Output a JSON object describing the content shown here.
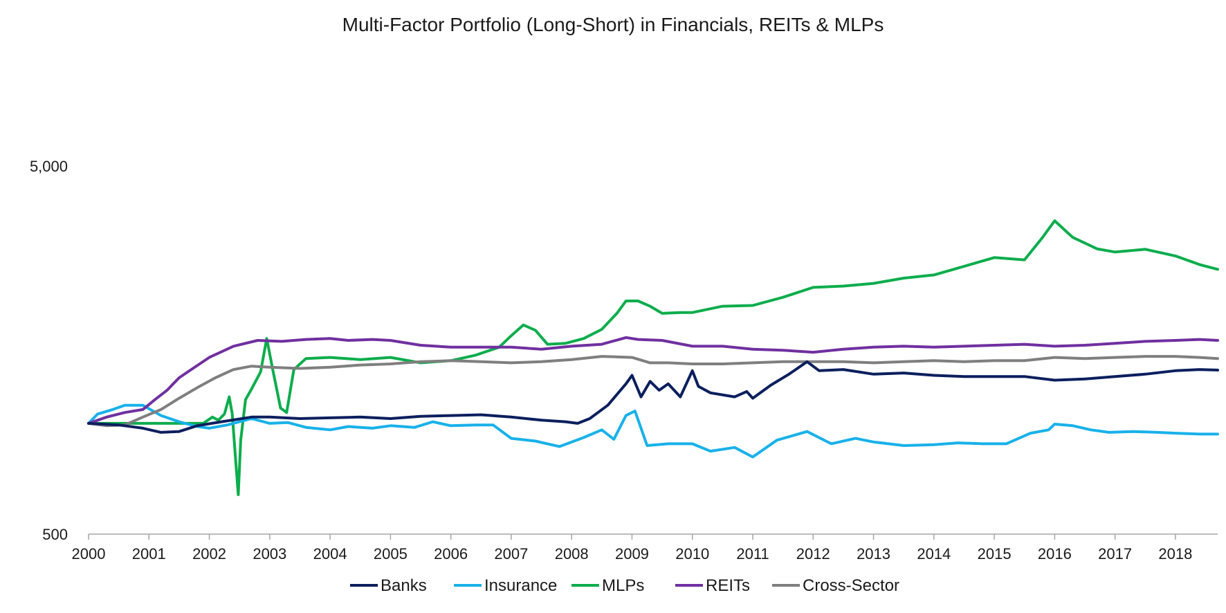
{
  "chart_data": {
    "type": "line",
    "title": "Multi-Factor Portfolio (Long-Short) in Financials, REITs & MLPs",
    "xlabel": "",
    "ylabel": "",
    "y_scale": "log",
    "ylim": [
      500,
      5000
    ],
    "y_ticks": [
      500,
      5000
    ],
    "y_tick_labels": [
      "500",
      "5,000"
    ],
    "xlim": [
      2000,
      2018.7
    ],
    "x_ticks": [
      2000,
      2001,
      2002,
      2003,
      2004,
      2005,
      2006,
      2007,
      2008,
      2009,
      2010,
      2011,
      2012,
      2013,
      2014,
      2015,
      2016,
      2017,
      2018
    ],
    "x_tick_labels": [
      "2000",
      "2001",
      "2002",
      "2003",
      "2004",
      "2005",
      "2006",
      "2007",
      "2008",
      "2009",
      "2010",
      "2011",
      "2012",
      "2013",
      "2014",
      "2015",
      "2016",
      "2017",
      "2018"
    ],
    "grid": false,
    "legend_position": "bottom",
    "series": [
      {
        "name": "Banks",
        "color": "#0b1f5e",
        "points": [
          [
            2000.0,
            1000
          ],
          [
            2000.5,
            990
          ],
          [
            2000.9,
            970
          ],
          [
            2001.2,
            945
          ],
          [
            2001.5,
            950
          ],
          [
            2001.8,
            985
          ],
          [
            2002.2,
            1010
          ],
          [
            2002.7,
            1040
          ],
          [
            2003.0,
            1040
          ],
          [
            2003.5,
            1030
          ],
          [
            2004.0,
            1035
          ],
          [
            2004.5,
            1040
          ],
          [
            2005.0,
            1030
          ],
          [
            2005.5,
            1045
          ],
          [
            2006.0,
            1050
          ],
          [
            2006.5,
            1055
          ],
          [
            2007.0,
            1040
          ],
          [
            2007.5,
            1020
          ],
          [
            2007.9,
            1010
          ],
          [
            2008.1,
            1000
          ],
          [
            2008.3,
            1030
          ],
          [
            2008.6,
            1120
          ],
          [
            2008.9,
            1280
          ],
          [
            2009.0,
            1350
          ],
          [
            2009.15,
            1180
          ],
          [
            2009.3,
            1300
          ],
          [
            2009.45,
            1230
          ],
          [
            2009.6,
            1280
          ],
          [
            2009.8,
            1180
          ],
          [
            2010.0,
            1390
          ],
          [
            2010.1,
            1260
          ],
          [
            2010.3,
            1210
          ],
          [
            2010.7,
            1180
          ],
          [
            2010.9,
            1220
          ],
          [
            2011.0,
            1170
          ],
          [
            2011.3,
            1270
          ],
          [
            2011.6,
            1360
          ],
          [
            2011.9,
            1470
          ],
          [
            2012.1,
            1390
          ],
          [
            2012.5,
            1400
          ],
          [
            2013.0,
            1360
          ],
          [
            2013.5,
            1370
          ],
          [
            2014.0,
            1350
          ],
          [
            2014.5,
            1340
          ],
          [
            2015.0,
            1340
          ],
          [
            2015.5,
            1340
          ],
          [
            2016.0,
            1310
          ],
          [
            2016.5,
            1320
          ],
          [
            2017.0,
            1340
          ],
          [
            2017.5,
            1360
          ],
          [
            2018.0,
            1390
          ],
          [
            2018.4,
            1400
          ],
          [
            2018.7,
            1395
          ]
        ]
      },
      {
        "name": "Insurance",
        "color": "#18b1ea",
        "points": [
          [
            2000.0,
            1000
          ],
          [
            2000.15,
            1060
          ],
          [
            2000.4,
            1090
          ],
          [
            2000.6,
            1120
          ],
          [
            2000.9,
            1120
          ],
          [
            2001.2,
            1050
          ],
          [
            2001.5,
            1010
          ],
          [
            2001.8,
            980
          ],
          [
            2002.0,
            970
          ],
          [
            2002.3,
            990
          ],
          [
            2002.7,
            1030
          ],
          [
            2003.0,
            1000
          ],
          [
            2003.3,
            1005
          ],
          [
            2003.6,
            975
          ],
          [
            2004.0,
            960
          ],
          [
            2004.3,
            980
          ],
          [
            2004.7,
            970
          ],
          [
            2005.0,
            985
          ],
          [
            2005.4,
            975
          ],
          [
            2005.7,
            1010
          ],
          [
            2006.0,
            985
          ],
          [
            2006.4,
            990
          ],
          [
            2006.7,
            990
          ],
          [
            2007.0,
            910
          ],
          [
            2007.4,
            895
          ],
          [
            2007.8,
            865
          ],
          [
            2008.2,
            915
          ],
          [
            2008.5,
            960
          ],
          [
            2008.7,
            905
          ],
          [
            2008.9,
            1050
          ],
          [
            2009.05,
            1080
          ],
          [
            2009.25,
            870
          ],
          [
            2009.6,
            880
          ],
          [
            2010.0,
            880
          ],
          [
            2010.3,
            840
          ],
          [
            2010.7,
            860
          ],
          [
            2011.0,
            810
          ],
          [
            2011.4,
            900
          ],
          [
            2011.9,
            950
          ],
          [
            2012.3,
            880
          ],
          [
            2012.7,
            910
          ],
          [
            2013.0,
            890
          ],
          [
            2013.5,
            870
          ],
          [
            2014.0,
            875
          ],
          [
            2014.4,
            885
          ],
          [
            2014.8,
            880
          ],
          [
            2015.2,
            880
          ],
          [
            2015.6,
            940
          ],
          [
            2015.9,
            960
          ],
          [
            2016.0,
            995
          ],
          [
            2016.3,
            985
          ],
          [
            2016.6,
            960
          ],
          [
            2016.9,
            945
          ],
          [
            2017.3,
            950
          ],
          [
            2017.7,
            945
          ],
          [
            2018.0,
            940
          ],
          [
            2018.4,
            935
          ],
          [
            2018.7,
            935
          ]
        ]
      },
      {
        "name": "MLPs",
        "color": "#0cad4c",
        "points": [
          [
            2000.0,
            1000
          ],
          [
            2001.0,
            1000
          ],
          [
            2001.9,
            1000
          ],
          [
            2002.05,
            1040
          ],
          [
            2002.15,
            1020
          ],
          [
            2002.25,
            1060
          ],
          [
            2002.33,
            1180
          ],
          [
            2002.38,
            1060
          ],
          [
            2002.44,
            780
          ],
          [
            2002.48,
            640
          ],
          [
            2002.52,
            900
          ],
          [
            2002.6,
            1160
          ],
          [
            2002.7,
            1240
          ],
          [
            2002.85,
            1380
          ],
          [
            2002.95,
            1700
          ],
          [
            2003.05,
            1400
          ],
          [
            2003.18,
            1100
          ],
          [
            2003.28,
            1070
          ],
          [
            2003.4,
            1400
          ],
          [
            2003.6,
            1500
          ],
          [
            2004.0,
            1510
          ],
          [
            2004.5,
            1490
          ],
          [
            2005.0,
            1510
          ],
          [
            2005.5,
            1460
          ],
          [
            2006.0,
            1480
          ],
          [
            2006.4,
            1530
          ],
          [
            2006.8,
            1610
          ],
          [
            2007.0,
            1730
          ],
          [
            2007.2,
            1850
          ],
          [
            2007.4,
            1790
          ],
          [
            2007.6,
            1640
          ],
          [
            2007.9,
            1650
          ],
          [
            2008.2,
            1700
          ],
          [
            2008.5,
            1800
          ],
          [
            2008.75,
            1990
          ],
          [
            2008.9,
            2150
          ],
          [
            2009.1,
            2150
          ],
          [
            2009.3,
            2080
          ],
          [
            2009.5,
            1990
          ],
          [
            2009.8,
            2000
          ],
          [
            2010.0,
            2000
          ],
          [
            2010.5,
            2080
          ],
          [
            2011.0,
            2090
          ],
          [
            2011.5,
            2200
          ],
          [
            2012.0,
            2340
          ],
          [
            2012.5,
            2360
          ],
          [
            2013.0,
            2400
          ],
          [
            2013.5,
            2480
          ],
          [
            2014.0,
            2530
          ],
          [
            2014.5,
            2670
          ],
          [
            2015.0,
            2820
          ],
          [
            2015.5,
            2780
          ],
          [
            2015.8,
            3200
          ],
          [
            2016.0,
            3550
          ],
          [
            2016.3,
            3200
          ],
          [
            2016.7,
            2980
          ],
          [
            2017.0,
            2920
          ],
          [
            2017.5,
            2970
          ],
          [
            2018.0,
            2850
          ],
          [
            2018.4,
            2700
          ],
          [
            2018.7,
            2620
          ]
        ]
      },
      {
        "name": "REITs",
        "color": "#7030a0",
        "points": [
          [
            2000.0,
            1000
          ],
          [
            2000.3,
            1040
          ],
          [
            2000.6,
            1070
          ],
          [
            2000.9,
            1090
          ],
          [
            2001.1,
            1160
          ],
          [
            2001.3,
            1230
          ],
          [
            2001.5,
            1330
          ],
          [
            2001.7,
            1400
          ],
          [
            2002.0,
            1510
          ],
          [
            2002.4,
            1620
          ],
          [
            2002.8,
            1680
          ],
          [
            2003.2,
            1670
          ],
          [
            2003.6,
            1690
          ],
          [
            2004.0,
            1700
          ],
          [
            2004.3,
            1680
          ],
          [
            2004.7,
            1690
          ],
          [
            2005.0,
            1680
          ],
          [
            2005.5,
            1630
          ],
          [
            2006.0,
            1610
          ],
          [
            2006.5,
            1610
          ],
          [
            2007.0,
            1610
          ],
          [
            2007.5,
            1590
          ],
          [
            2008.0,
            1620
          ],
          [
            2008.5,
            1640
          ],
          [
            2008.9,
            1710
          ],
          [
            2009.1,
            1690
          ],
          [
            2009.5,
            1680
          ],
          [
            2010.0,
            1620
          ],
          [
            2010.5,
            1620
          ],
          [
            2011.0,
            1590
          ],
          [
            2011.5,
            1580
          ],
          [
            2012.0,
            1560
          ],
          [
            2012.5,
            1590
          ],
          [
            2013.0,
            1610
          ],
          [
            2013.5,
            1620
          ],
          [
            2014.0,
            1610
          ],
          [
            2014.5,
            1620
          ],
          [
            2015.0,
            1630
          ],
          [
            2015.5,
            1640
          ],
          [
            2016.0,
            1620
          ],
          [
            2016.5,
            1630
          ],
          [
            2017.0,
            1650
          ],
          [
            2017.5,
            1670
          ],
          [
            2018.0,
            1680
          ],
          [
            2018.4,
            1690
          ],
          [
            2018.7,
            1680
          ]
        ]
      },
      {
        "name": "Cross-Sector",
        "color": "#7f7f7f",
        "points": [
          [
            2000.0,
            1000
          ],
          [
            2000.3,
            985
          ],
          [
            2000.6,
            990
          ],
          [
            2000.9,
            1040
          ],
          [
            2001.2,
            1090
          ],
          [
            2001.5,
            1170
          ],
          [
            2001.8,
            1250
          ],
          [
            2002.1,
            1330
          ],
          [
            2002.4,
            1400
          ],
          [
            2002.7,
            1430
          ],
          [
            2003.0,
            1420
          ],
          [
            2003.5,
            1410
          ],
          [
            2004.0,
            1420
          ],
          [
            2004.5,
            1440
          ],
          [
            2005.0,
            1450
          ],
          [
            2005.5,
            1470
          ],
          [
            2006.0,
            1480
          ],
          [
            2006.5,
            1470
          ],
          [
            2007.0,
            1460
          ],
          [
            2007.5,
            1470
          ],
          [
            2008.0,
            1490
          ],
          [
            2008.5,
            1520
          ],
          [
            2009.0,
            1510
          ],
          [
            2009.3,
            1460
          ],
          [
            2009.6,
            1460
          ],
          [
            2010.0,
            1450
          ],
          [
            2010.5,
            1450
          ],
          [
            2011.0,
            1460
          ],
          [
            2011.5,
            1470
          ],
          [
            2012.0,
            1470
          ],
          [
            2012.5,
            1470
          ],
          [
            2013.0,
            1460
          ],
          [
            2013.5,
            1470
          ],
          [
            2014.0,
            1480
          ],
          [
            2014.5,
            1470
          ],
          [
            2015.0,
            1480
          ],
          [
            2015.5,
            1480
          ],
          [
            2016.0,
            1510
          ],
          [
            2016.5,
            1500
          ],
          [
            2017.0,
            1510
          ],
          [
            2017.5,
            1520
          ],
          [
            2018.0,
            1520
          ],
          [
            2018.4,
            1510
          ],
          [
            2018.7,
            1500
          ]
        ]
      }
    ]
  }
}
